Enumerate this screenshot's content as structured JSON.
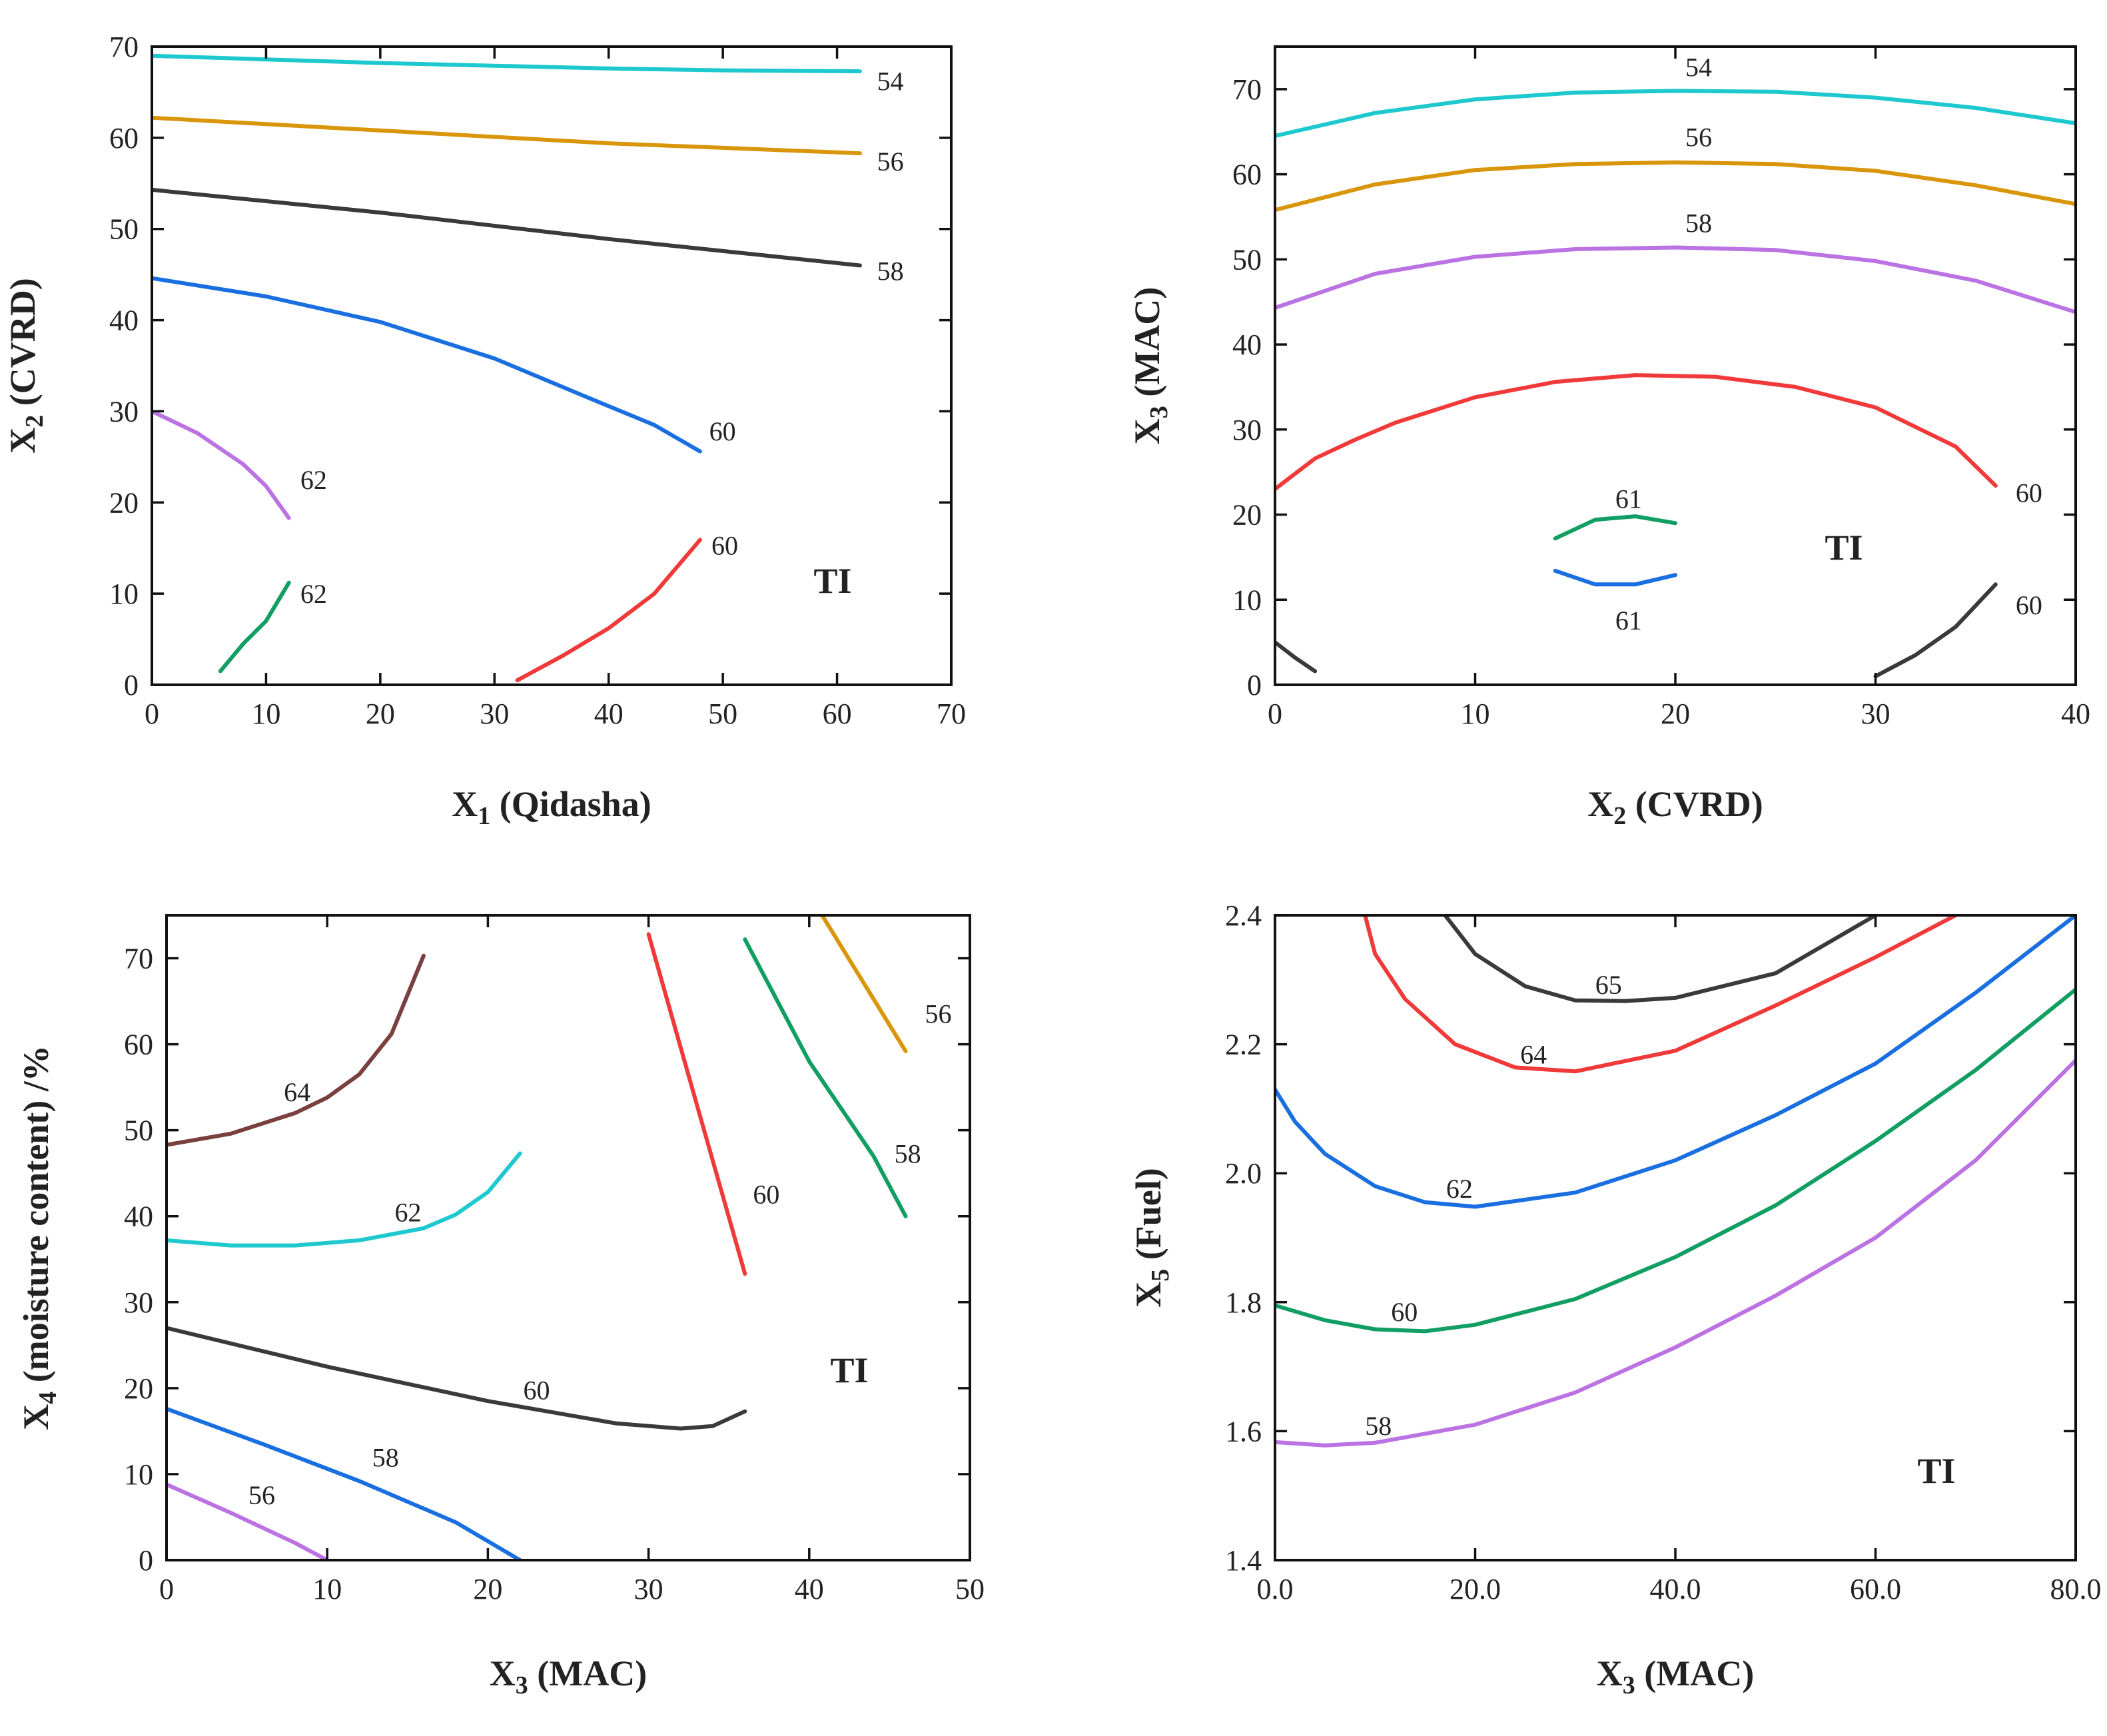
{
  "colors": {
    "cyan": "#1ec8cf",
    "orange": "#d9960a",
    "gray": "#3a3a3a",
    "blue": "#1a6fe0",
    "purple": "#bb72e2",
    "green": "#119e62",
    "red": "#f03a3a",
    "brown": "#7a3f3f"
  },
  "chart_data": [
    {
      "type": "contour",
      "title": "TI",
      "xlabel": {
        "main": "X",
        "sub": "1",
        "rest": " (Qidasha)"
      },
      "ylabel": {
        "main": "X",
        "sub": "2",
        "rest": " (CVRD)"
      },
      "xlim": [
        0,
        70
      ],
      "ylim": [
        0,
        70
      ],
      "xticks": [
        0,
        10,
        20,
        30,
        40,
        50,
        60,
        70
      ],
      "yticks": [
        0,
        10,
        20,
        30,
        40,
        50,
        60,
        70
      ],
      "series": [
        {
          "label": "54",
          "color": "cyan",
          "points": [
            [
              0,
              69
            ],
            [
              10,
              68.6
            ],
            [
              20,
              68.2
            ],
            [
              30,
              67.9
            ],
            [
              40,
              67.6
            ],
            [
              50,
              67.4
            ],
            [
              62,
              67.3
            ]
          ],
          "label_at": [
            63.5,
            65.2
          ]
        },
        {
          "label": "56",
          "color": "orange",
          "points": [
            [
              0,
              62.2
            ],
            [
              20,
              60.8
            ],
            [
              40,
              59.4
            ],
            [
              62,
              58.3
            ]
          ],
          "label_at": [
            63.5,
            56.4
          ]
        },
        {
          "label": "58",
          "color": "gray",
          "points": [
            [
              0,
              54.3
            ],
            [
              20,
              51.8
            ],
            [
              40,
              48.9
            ],
            [
              62,
              46
            ]
          ],
          "label_at": [
            63.5,
            44.4
          ]
        },
        {
          "label": "60",
          "color": "blue",
          "points": [
            [
              0,
              44.6
            ],
            [
              10,
              42.6
            ],
            [
              20,
              39.8
            ],
            [
              30,
              35.8
            ],
            [
              38,
              31.6
            ],
            [
              44,
              28.5
            ],
            [
              48,
              25.6
            ]
          ],
          "label_at": [
            48.8,
            26.8
          ]
        },
        {
          "label": "62",
          "color": "purple",
          "points": [
            [
              0,
              30
            ],
            [
              4,
              27.6
            ],
            [
              8,
              24.2
            ],
            [
              10,
              21.8
            ],
            [
              12,
              18.3
            ]
          ],
          "label_at": [
            13,
            21.5
          ]
        },
        {
          "label": "62",
          "color": "green",
          "points": [
            [
              6,
              1.5
            ],
            [
              8,
              4.5
            ],
            [
              10,
              7
            ],
            [
              12,
              11.2
            ]
          ],
          "label_at": [
            13,
            9
          ]
        },
        {
          "label": "60",
          "color": "red",
          "points": [
            [
              32,
              0.5
            ],
            [
              36,
              3.2
            ],
            [
              40,
              6.2
            ],
            [
              44,
              10
            ],
            [
              48,
              15.9
            ]
          ],
          "label_at": [
            49,
            14.3
          ]
        }
      ]
    },
    {
      "type": "contour",
      "title": "TI",
      "xlabel": {
        "main": "X",
        "sub": "2",
        "rest": " (CVRD)"
      },
      "ylabel": {
        "main": "X",
        "sub": "3",
        "rest": " (MAC)"
      },
      "xlim": [
        0,
        40
      ],
      "ylim": [
        0,
        75
      ],
      "xticks": [
        0,
        10,
        20,
        30,
        40
      ],
      "yticks": [
        0,
        10,
        20,
        30,
        40,
        50,
        60,
        70
      ],
      "series": [
        {
          "label": "54",
          "color": "cyan",
          "points": [
            [
              0,
              64.5
            ],
            [
              5,
              67.2
            ],
            [
              10,
              68.8
            ],
            [
              15,
              69.6
            ],
            [
              20,
              69.8
            ],
            [
              25,
              69.7
            ],
            [
              30,
              69
            ],
            [
              35,
              67.8
            ],
            [
              40,
              66
            ]
          ],
          "label_at": [
            20.5,
            71.5
          ]
        },
        {
          "label": "56",
          "color": "orange",
          "points": [
            [
              0,
              55.8
            ],
            [
              5,
              58.8
            ],
            [
              10,
              60.5
            ],
            [
              15,
              61.2
            ],
            [
              20,
              61.4
            ],
            [
              25,
              61.2
            ],
            [
              30,
              60.4
            ],
            [
              35,
              58.7
            ],
            [
              40,
              56.5
            ]
          ],
          "label_at": [
            20.5,
            63.3
          ]
        },
        {
          "label": "58",
          "color": "purple",
          "points": [
            [
              0,
              44.3
            ],
            [
              5,
              48.3
            ],
            [
              10,
              50.3
            ],
            [
              15,
              51.2
            ],
            [
              20,
              51.4
            ],
            [
              25,
              51.1
            ],
            [
              30,
              49.8
            ],
            [
              35,
              47.5
            ],
            [
              40,
              43.8
            ]
          ],
          "label_at": [
            20.5,
            53.2
          ]
        },
        {
          "label": "60",
          "color": "red",
          "points": [
            [
              0,
              23
            ],
            [
              2,
              26.6
            ],
            [
              4,
              28.8
            ],
            [
              6,
              30.8
            ],
            [
              10,
              33.8
            ],
            [
              14,
              35.6
            ],
            [
              18,
              36.4
            ],
            [
              22,
              36.2
            ],
            [
              26,
              35
            ],
            [
              30,
              32.6
            ],
            [
              34,
              28
            ],
            [
              36,
              23.4
            ]
          ],
          "label_at": [
            37,
            21.5
          ]
        },
        {
          "label": "61",
          "color": "green",
          "points": [
            [
              14,
              17.2
            ],
            [
              16,
              19.4
            ],
            [
              18,
              19.8
            ],
            [
              20,
              19
            ]
          ],
          "label_at": [
            17,
            20.8
          ]
        },
        {
          "label": "61",
          "color": "blue",
          "points": [
            [
              14,
              13.4
            ],
            [
              16,
              11.8
            ],
            [
              18,
              11.8
            ],
            [
              20,
              12.9
            ]
          ],
          "label_at": [
            17,
            6.5
          ]
        },
        {
          "label": "60",
          "color": "gray",
          "points": [
            [
              30,
              1
            ],
            [
              32,
              3.5
            ],
            [
              34,
              6.8
            ],
            [
              36,
              11.8
            ]
          ],
          "label_at": [
            37,
            8.3
          ]
        },
        {
          "label": "",
          "color": "gray",
          "points": [
            [
              0,
              5
            ],
            [
              1,
              3.2
            ],
            [
              2,
              1.6
            ]
          ]
        }
      ]
    },
    {
      "type": "contour",
      "title": "TI",
      "xlabel": {
        "main": "X",
        "sub": "3",
        "rest": " (MAC)"
      },
      "ylabel": {
        "main": "X",
        "sub": "4",
        "rest": " (moisture content) /%"
      },
      "xlim": [
        0,
        50
      ],
      "ylim": [
        0,
        75
      ],
      "xticks": [
        0,
        10,
        20,
        30,
        40,
        50
      ],
      "yticks": [
        0,
        10,
        20,
        30,
        40,
        50,
        60,
        70
      ],
      "series": [
        {
          "label": "64",
          "color": "brown",
          "points": [
            [
              0,
              48.3
            ],
            [
              4,
              49.6
            ],
            [
              8,
              52
            ],
            [
              10,
              53.8
            ],
            [
              12,
              56.5
            ],
            [
              14,
              61.2
            ],
            [
              16,
              70.3
            ]
          ],
          "label_at": [
            7.3,
            53.4
          ]
        },
        {
          "label": "62",
          "color": "cyan",
          "points": [
            [
              0,
              37.2
            ],
            [
              4,
              36.6
            ],
            [
              8,
              36.6
            ],
            [
              12,
              37.2
            ],
            [
              16,
              38.6
            ],
            [
              18,
              40.2
            ],
            [
              20,
              42.8
            ],
            [
              22,
              47.3
            ]
          ],
          "label_at": [
            14.2,
            39.4
          ]
        },
        {
          "label": "60",
          "color": "gray",
          "points": [
            [
              0,
              27
            ],
            [
              10,
              22.5
            ],
            [
              20,
              18.5
            ],
            [
              28,
              15.9
            ],
            [
              32,
              15.3
            ],
            [
              34,
              15.6
            ],
            [
              36,
              17.3
            ]
          ],
          "label_at": [
            22.2,
            18.7
          ]
        },
        {
          "label": "58",
          "color": "blue",
          "points": [
            [
              0,
              17.6
            ],
            [
              6,
              13.5
            ],
            [
              12,
              9.2
            ],
            [
              18,
              4.4
            ],
            [
              22,
              0
            ]
          ],
          "label_at": [
            12.8,
            10.9
          ]
        },
        {
          "label": "56",
          "color": "purple",
          "points": [
            [
              0,
              8.8
            ],
            [
              4,
              5.5
            ],
            [
              8,
              2
            ],
            [
              10,
              0
            ]
          ],
          "label_at": [
            5.1,
            6.5
          ]
        },
        {
          "label": "60",
          "color": "red",
          "points": [
            [
              30,
              72.8
            ],
            [
              33,
              53
            ],
            [
              36,
              33.3
            ]
          ],
          "label_at": [
            36.5,
            41.5
          ]
        },
        {
          "label": "58",
          "color": "green",
          "points": [
            [
              36,
              72.2
            ],
            [
              40,
              58
            ],
            [
              44,
              47
            ],
            [
              46,
              40
            ]
          ],
          "label_at": [
            45.3,
            46.2
          ]
        },
        {
          "label": "56",
          "color": "orange",
          "points": [
            [
              40.8,
              75
            ],
            [
              46,
              59.2
            ]
          ],
          "label_at": [
            47.2,
            62.5
          ]
        }
      ]
    },
    {
      "type": "contour",
      "title": "TI",
      "xlabel": {
        "main": "X",
        "sub": "3",
        "rest": " (MAC)"
      },
      "ylabel": {
        "main": "X",
        "sub": "5",
        "rest": " (Fuel)"
      },
      "xlim": [
        0,
        80
      ],
      "ylim": [
        1.4,
        2.4
      ],
      "xticks": [
        0,
        20,
        40,
        60,
        80
      ],
      "yticks": [
        1.4,
        1.6,
        1.8,
        2.0,
        2.2,
        2.4
      ],
      "tick_decimals": 1,
      "series": [
        {
          "label": "65",
          "color": "gray",
          "points": [
            [
              17,
              2.4
            ],
            [
              20,
              2.34
            ],
            [
              25,
              2.29
            ],
            [
              30,
              2.268
            ],
            [
              35,
              2.267
            ],
            [
              40,
              2.272
            ],
            [
              50,
              2.31
            ],
            [
              60,
              2.4
            ]
          ],
          "label_at": [
            32,
            2.278
          ]
        },
        {
          "label": "64",
          "color": "red",
          "points": [
            [
              9,
              2.4
            ],
            [
              10,
              2.34
            ],
            [
              13,
              2.27
            ],
            [
              18,
              2.2
            ],
            [
              24,
              2.164
            ],
            [
              30,
              2.158
            ],
            [
              40,
              2.19
            ],
            [
              50,
              2.26
            ],
            [
              60,
              2.335
            ],
            [
              68,
              2.4
            ]
          ],
          "label_at": [
            24.5,
            2.17
          ]
        },
        {
          "label": "62",
          "color": "blue",
          "points": [
            [
              0,
              2.13
            ],
            [
              2,
              2.08
            ],
            [
              5,
              2.03
            ],
            [
              10,
              1.98
            ],
            [
              15,
              1.955
            ],
            [
              20,
              1.948
            ],
            [
              30,
              1.97
            ],
            [
              40,
              2.02
            ],
            [
              50,
              2.09
            ],
            [
              60,
              2.17
            ],
            [
              70,
              2.28
            ],
            [
              80,
              2.4
            ]
          ],
          "label_at": [
            17.1,
            1.962
          ]
        },
        {
          "label": "60",
          "color": "green",
          "points": [
            [
              0,
              1.795
            ],
            [
              5,
              1.772
            ],
            [
              10,
              1.758
            ],
            [
              15,
              1.755
            ],
            [
              20,
              1.765
            ],
            [
              30,
              1.805
            ],
            [
              40,
              1.87
            ],
            [
              50,
              1.95
            ],
            [
              60,
              2.05
            ],
            [
              70,
              2.16
            ],
            [
              80,
              2.285
            ]
          ],
          "label_at": [
            11.6,
            1.771
          ]
        },
        {
          "label": "58",
          "color": "purple",
          "points": [
            [
              0,
              1.583
            ],
            [
              5,
              1.578
            ],
            [
              10,
              1.582
            ],
            [
              20,
              1.61
            ],
            [
              30,
              1.66
            ],
            [
              40,
              1.73
            ],
            [
              50,
              1.81
            ],
            [
              60,
              1.9
            ],
            [
              70,
              2.02
            ],
            [
              80,
              2.175
            ]
          ],
          "label_at": [
            9,
            1.594
          ]
        }
      ]
    }
  ]
}
